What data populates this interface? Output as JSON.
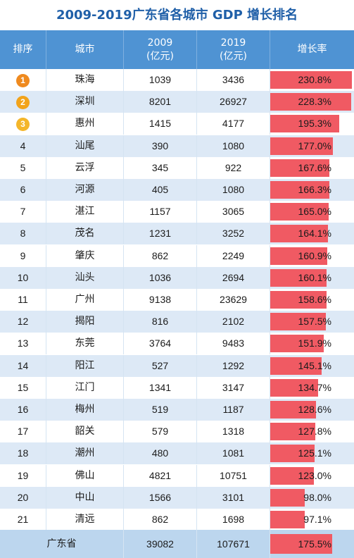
{
  "title": "2009-2019广东省各城市 GDP 增长排名",
  "colors": {
    "header_bg": "#4f93d3",
    "row_even": "#ffffff",
    "row_odd": "#dde9f6",
    "bar": "#f05a63",
    "title": "#1f5fa8",
    "badge_gold": "#f2a31a",
    "badge_orange": "#ef8a1f",
    "badge_yellow": "#f4b62a"
  },
  "headers": {
    "rank": "排序",
    "city": "城市",
    "y2009_line1": "2009",
    "y2009_line2": "(亿元)",
    "y2019_line1": "2019",
    "y2019_line2": "(亿元)",
    "growth": "增长率"
  },
  "chart_data": {
    "type": "table",
    "title": "2009-2019广东省各城市 GDP 增长排名",
    "columns": [
      "排序",
      "城市",
      "2009 (亿元)",
      "2019 (亿元)",
      "增长率"
    ],
    "rows": [
      {
        "rank": "1",
        "city": "珠海",
        "gdp2009": "1039",
        "gdp2019": "3436",
        "growth": "230.8%",
        "growth_value": 230.8
      },
      {
        "rank": "2",
        "city": "深圳",
        "gdp2009": "8201",
        "gdp2019": "26927",
        "growth": "228.3%",
        "growth_value": 228.3
      },
      {
        "rank": "3",
        "city": "惠州",
        "gdp2009": "1415",
        "gdp2019": "4177",
        "growth": "195.3%",
        "growth_value": 195.3
      },
      {
        "rank": "4",
        "city": "汕尾",
        "gdp2009": "390",
        "gdp2019": "1080",
        "growth": "177.0%",
        "growth_value": 177.0
      },
      {
        "rank": "5",
        "city": "云浮",
        "gdp2009": "345",
        "gdp2019": "922",
        "growth": "167.6%",
        "growth_value": 167.6
      },
      {
        "rank": "6",
        "city": "河源",
        "gdp2009": "405",
        "gdp2019": "1080",
        "growth": "166.3%",
        "growth_value": 166.3
      },
      {
        "rank": "7",
        "city": "湛江",
        "gdp2009": "1157",
        "gdp2019": "3065",
        "growth": "165.0%",
        "growth_value": 165.0
      },
      {
        "rank": "8",
        "city": "茂名",
        "gdp2009": "1231",
        "gdp2019": "3252",
        "growth": "164.1%",
        "growth_value": 164.1
      },
      {
        "rank": "9",
        "city": "肇庆",
        "gdp2009": "862",
        "gdp2019": "2249",
        "growth": "160.9%",
        "growth_value": 160.9
      },
      {
        "rank": "10",
        "city": "汕头",
        "gdp2009": "1036",
        "gdp2019": "2694",
        "growth": "160.1%",
        "growth_value": 160.1
      },
      {
        "rank": "11",
        "city": "广州",
        "gdp2009": "9138",
        "gdp2019": "23629",
        "growth": "158.6%",
        "growth_value": 158.6
      },
      {
        "rank": "12",
        "city": "揭阳",
        "gdp2009": "816",
        "gdp2019": "2102",
        "growth": "157.5%",
        "growth_value": 157.5
      },
      {
        "rank": "13",
        "city": "东莞",
        "gdp2009": "3764",
        "gdp2019": "9483",
        "growth": "151.9%",
        "growth_value": 151.9
      },
      {
        "rank": "14",
        "city": "阳江",
        "gdp2009": "527",
        "gdp2019": "1292",
        "growth": "145.1%",
        "growth_value": 145.1
      },
      {
        "rank": "15",
        "city": "江门",
        "gdp2009": "1341",
        "gdp2019": "3147",
        "growth": "134.7%",
        "growth_value": 134.7
      },
      {
        "rank": "16",
        "city": "梅州",
        "gdp2009": "519",
        "gdp2019": "1187",
        "growth": "128.6%",
        "growth_value": 128.6
      },
      {
        "rank": "17",
        "city": "韶关",
        "gdp2009": "579",
        "gdp2019": "1318",
        "growth": "127.8%",
        "growth_value": 127.8
      },
      {
        "rank": "18",
        "city": "潮州",
        "gdp2009": "480",
        "gdp2019": "1081",
        "growth": "125.1%",
        "growth_value": 125.1
      },
      {
        "rank": "19",
        "city": "佛山",
        "gdp2009": "4821",
        "gdp2019": "10751",
        "growth": "123.0%",
        "growth_value": 123.0
      },
      {
        "rank": "20",
        "city": "中山",
        "gdp2009": "1566",
        "gdp2019": "3101",
        "growth": "98.0%",
        "growth_value": 98.0
      },
      {
        "rank": "21",
        "city": "清远",
        "gdp2009": "862",
        "gdp2019": "1698",
        "growth": "97.1%",
        "growth_value": 97.1
      }
    ],
    "total": {
      "label": "广东省",
      "gdp2009": "39082",
      "gdp2019": "107671",
      "growth": "175.5%",
      "growth_value": 175.5
    },
    "bar_max": 230.8
  }
}
